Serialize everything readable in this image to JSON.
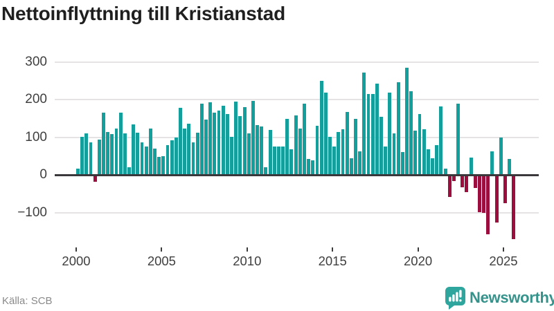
{
  "title": "Nettoinflyttning till Kristianstad",
  "footer": {
    "source": "Källa: SCB",
    "brand": "Newsworthy"
  },
  "colors": {
    "positive": "#13a09c",
    "negative": "#9b0e3e",
    "zero_axis": "#3a383a",
    "grid": "#e5e3e4",
    "tick_label": "#3f3f3f",
    "title": "#1f1f1f",
    "source_text": "#8a8a8a",
    "brand_mark": "#2ea59d",
    "brand_text": "#35938c"
  },
  "chart_data": {
    "type": "bar",
    "title": "Nettoinflyttning till Kristianstad",
    "period": "quarterly",
    "x_start_year": 2000,
    "x_start_quarter": 1,
    "values": [
      18,
      102,
      111,
      87,
      -15,
      94,
      166,
      115,
      109,
      124,
      166,
      111,
      20,
      135,
      113,
      87,
      76,
      124,
      70,
      48,
      50,
      80,
      93,
      100,
      178,
      123,
      137,
      86,
      113,
      189,
      147,
      193,
      165,
      172,
      184,
      163,
      102,
      195,
      156,
      180,
      111,
      197,
      133,
      130,
      21,
      120,
      75,
      76,
      75,
      150,
      69,
      158,
      123,
      189,
      43,
      39,
      131,
      250,
      220,
      102,
      76,
      114,
      122,
      168,
      44,
      150,
      63,
      272,
      216,
      216,
      243,
      155,
      76,
      219,
      111,
      247,
      62,
      285,
      222,
      118,
      163,
      121,
      69,
      44,
      80,
      183,
      17,
      -55,
      -13,
      189,
      -30,
      -42,
      47,
      -32,
      -96,
      -98,
      -154,
      63,
      -123,
      100,
      -73,
      42,
      -168
    ],
    "yticks": [
      300,
      200,
      100,
      0,
      -100
    ],
    "xticks": [
      2000,
      2005,
      2010,
      2015,
      2020,
      2025
    ],
    "ylim": [
      -185,
      312
    ],
    "grid": "horizontal-only",
    "legend": "none",
    "positive_color": "#13a09c",
    "negative_color": "#9b0e3e"
  }
}
